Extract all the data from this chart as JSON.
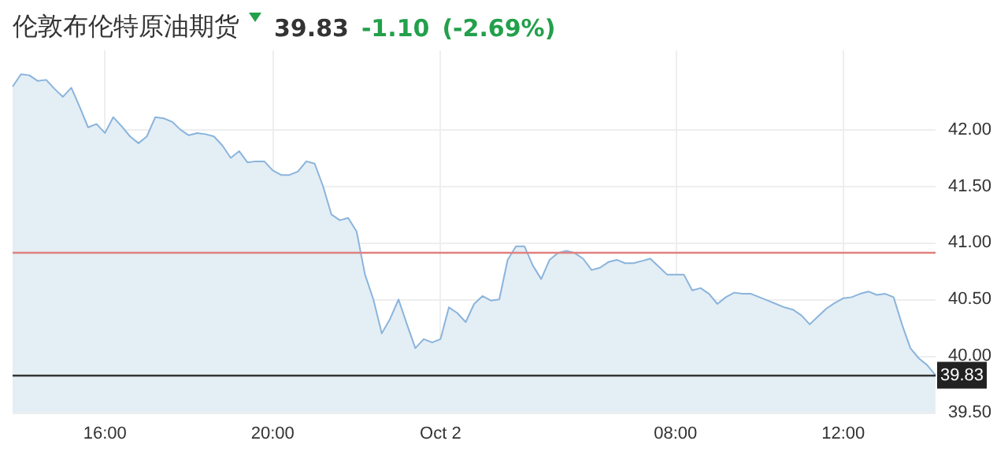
{
  "chart_data": {
    "type": "area",
    "title": "伦敦布伦特原油期货",
    "annotations": [
      "39.83",
      "-1.10",
      "(-2.69%)"
    ],
    "categories": [
      null,
      null,
      null,
      null,
      null,
      null,
      null,
      null,
      null,
      null,
      null,
      "16:00",
      null,
      null,
      null,
      null,
      null,
      null,
      null,
      null,
      null,
      null,
      null,
      null,
      null,
      null,
      null,
      null,
      null,
      null,
      null,
      "20:00",
      null,
      null,
      null,
      null,
      null,
      null,
      null,
      null,
      null,
      null,
      null,
      null,
      null,
      null,
      null,
      null,
      null,
      null,
      null,
      "Oct 2",
      null,
      null,
      null,
      null,
      null,
      null,
      null,
      null,
      null,
      null,
      null,
      null,
      null,
      null,
      null,
      null,
      null,
      null,
      null,
      null,
      null,
      null,
      null,
      null,
      null,
      null,
      null,
      "08:00",
      null,
      null,
      null,
      null,
      null,
      null,
      null,
      null,
      null,
      null,
      null,
      null,
      null,
      null,
      null,
      null,
      null,
      null,
      null,
      "12:00",
      null,
      null,
      null,
      null,
      null,
      null,
      null,
      null,
      null,
      null,
      null
    ],
    "series": [
      {
        "color": "#8ab4dc",
        "values": [
          42.38,
          42.49,
          42.48,
          42.43,
          42.44,
          42.36,
          42.29,
          42.37,
          42.2,
          42.02,
          42.05,
          41.97,
          42.11,
          42.03,
          41.94,
          41.88,
          41.94,
          42.11,
          42.1,
          42.07,
          42.0,
          41.95,
          41.97,
          41.96,
          41.94,
          41.86,
          41.75,
          41.81,
          41.71,
          41.72,
          41.72,
          41.64,
          41.6,
          41.6,
          41.63,
          41.72,
          41.7,
          41.5,
          41.25,
          41.2,
          41.22,
          41.1,
          40.72,
          40.5,
          40.2,
          40.33,
          40.5,
          40.28,
          40.07,
          40.15,
          40.12,
          40.15,
          40.43,
          40.38,
          40.3,
          40.46,
          40.53,
          40.49,
          40.5,
          40.85,
          40.97,
          40.97,
          40.8,
          40.68,
          40.85,
          40.91,
          40.93,
          40.91,
          40.86,
          40.76,
          40.78,
          40.83,
          40.85,
          40.82,
          40.82,
          40.84,
          40.86,
          40.79,
          40.72,
          40.72,
          40.72,
          40.58,
          40.6,
          40.55,
          40.46,
          40.52,
          40.56,
          40.55,
          40.55,
          40.52,
          40.49,
          40.46,
          40.43,
          40.41,
          40.36,
          40.28,
          40.35,
          40.42,
          40.47,
          40.51,
          40.52,
          40.55,
          40.57,
          40.54,
          40.55,
          40.52,
          40.28,
          40.07,
          39.98,
          39.92,
          39.83
        ]
      }
    ],
    "ylim": [
      39.5,
      42.7
    ],
    "yticks": [
      {
        "value": 39.5,
        "label": "39.50"
      },
      {
        "value": 40,
        "label": "40.00"
      },
      {
        "value": 40.5,
        "label": "40.50"
      },
      {
        "value": 41,
        "label": "41.00"
      },
      {
        "value": 41.5,
        "label": "41.50"
      },
      {
        "value": 42,
        "label": "42.00"
      }
    ],
    "ref_lines": [
      {
        "axis": "y",
        "value": 40.92,
        "label": null,
        "color": "#e08080"
      },
      {
        "axis": "y",
        "value": 39.83,
        "label": "39.83",
        "color": "#333333"
      }
    ],
    "grid": true,
    "marker": "none",
    "line_style": "solid"
  }
}
